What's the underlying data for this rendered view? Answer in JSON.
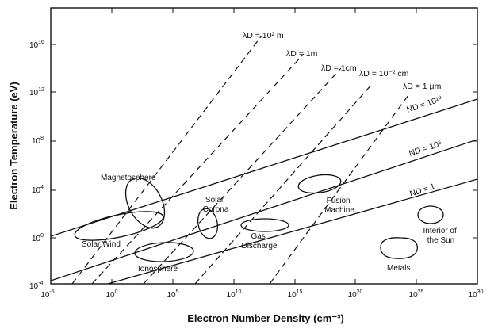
{
  "figure": {
    "xlabel": "Electron Number Density (cm⁻³)",
    "ylabel": "Electron Temperature (eV)",
    "x_ticks": [
      {
        "base": "10",
        "exp": "-5"
      },
      {
        "base": "10",
        "exp": "0"
      },
      {
        "base": "10",
        "exp": "5"
      },
      {
        "base": "10",
        "exp": "10"
      },
      {
        "base": "10",
        "exp": "15"
      },
      {
        "base": "10",
        "exp": "20"
      },
      {
        "base": "10",
        "exp": "25"
      },
      {
        "base": "10",
        "exp": "30"
      }
    ],
    "y_ticks": [
      {
        "base": "10",
        "exp": "-4"
      },
      {
        "base": "10",
        "exp": "0"
      },
      {
        "base": "10",
        "exp": "4"
      },
      {
        "base": "10",
        "exp": "8"
      },
      {
        "base": "10",
        "exp": "12"
      },
      {
        "base": "10",
        "exp": "16"
      }
    ],
    "debye_length_labels": [
      "λD = 10² m",
      "λD = 1m",
      "λD = 1cm",
      "λD = 10⁻² cm",
      "λD = 1 μm"
    ],
    "plasma_parameter_labels": [
      "ND = 10¹⁰",
      "ND = 10⁵",
      "ND = 1"
    ],
    "regions": [
      {
        "lines": [
          "Magnetosphere"
        ]
      },
      {
        "lines": [
          "Solar Wind"
        ]
      },
      {
        "lines": [
          "Solar",
          "Corona"
        ]
      },
      {
        "lines": [
          "Ionosphere"
        ]
      },
      {
        "lines": [
          "Gas",
          "Discharge"
        ]
      },
      {
        "lines": [
          "Fusion",
          "Machine"
        ]
      },
      {
        "lines": [
          "Interior of",
          "the Sun"
        ]
      },
      {
        "lines": [
          "Metals"
        ]
      }
    ]
  }
}
